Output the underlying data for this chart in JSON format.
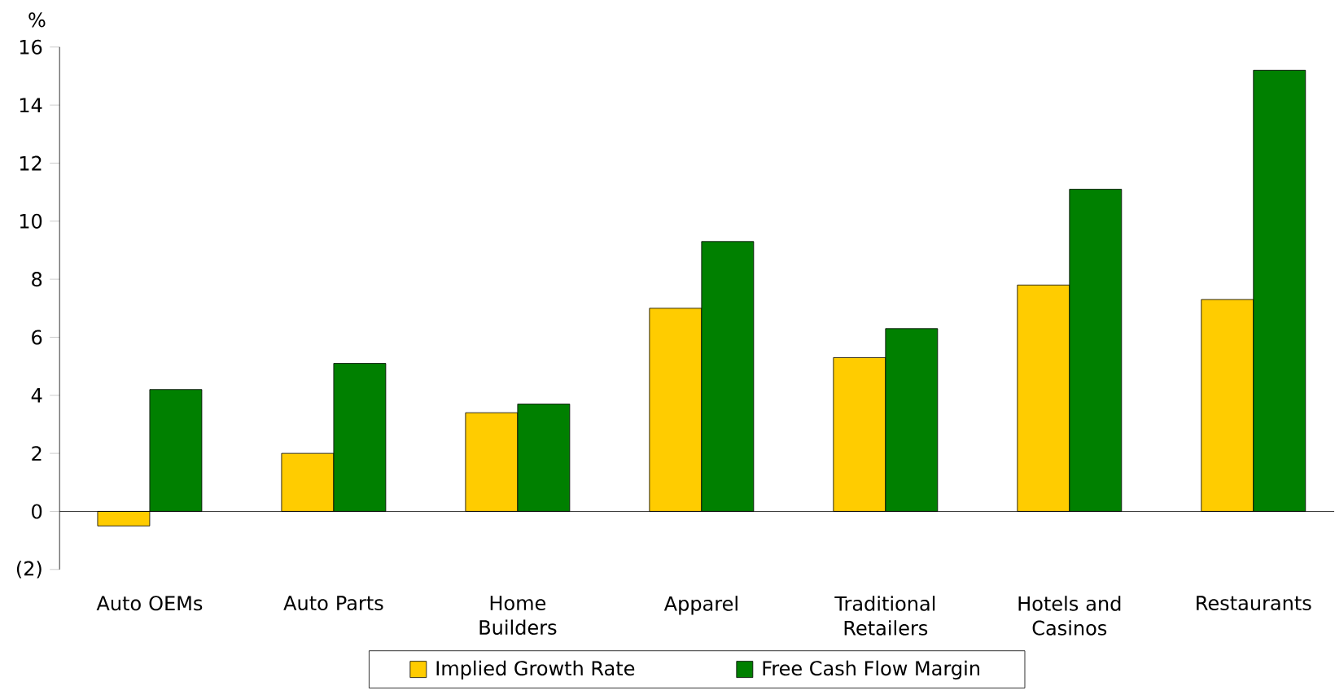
{
  "chart_data": {
    "type": "bar",
    "ylabel": "%",
    "categories": [
      "Auto OEMs",
      "Auto Parts",
      "Home Builders",
      "Apparel",
      "Traditional Retailers",
      "Hotels and Casinos",
      "Restaurants"
    ],
    "series": [
      {
        "name": "Implied Growth Rate",
        "color": "#ffcc00",
        "values": [
          -0.5,
          2.0,
          3.4,
          7.0,
          5.3,
          7.8,
          7.3
        ]
      },
      {
        "name": "Free Cash Flow Margin",
        "color": "#008000",
        "values": [
          4.2,
          5.1,
          3.7,
          9.3,
          6.3,
          11.1,
          15.2
        ]
      }
    ],
    "ylim": [
      -2,
      16
    ],
    "yticks": [
      {
        "value": -2,
        "label": "(2)"
      },
      0,
      2,
      4,
      6,
      8,
      10,
      12,
      14,
      16
    ],
    "legend": "bottom"
  }
}
